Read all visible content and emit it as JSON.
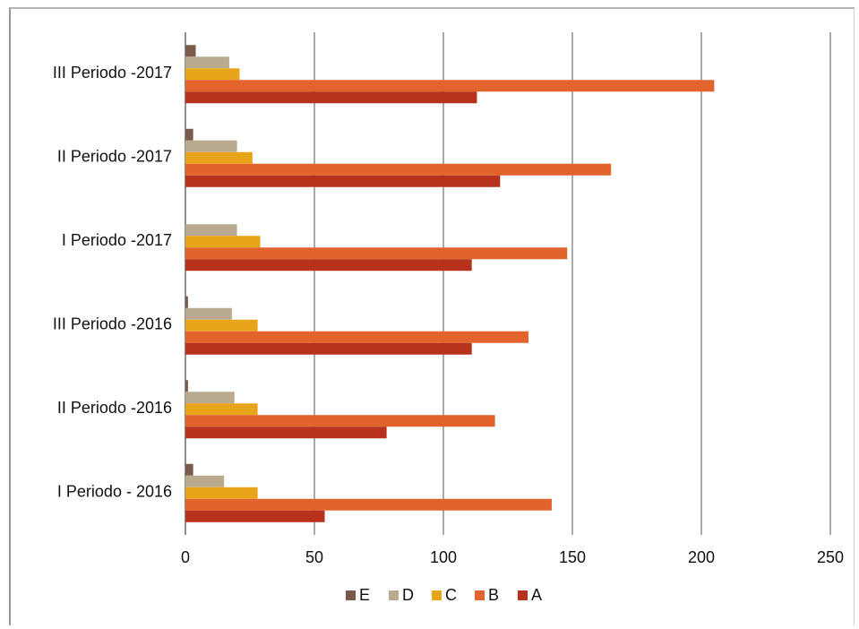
{
  "chart_data": {
    "type": "bar",
    "orientation": "horizontal",
    "categories": [
      "I Periodo - 2016",
      "II Periodo  -2016",
      "III Periodo -2016",
      "I Periodo -2017",
      "II Periodo  -2017",
      "III Periodo -2017"
    ],
    "series": [
      {
        "name": "E",
        "color": "#7a5a4c",
        "values": [
          3,
          1,
          1,
          0,
          3,
          4
        ]
      },
      {
        "name": "D",
        "color": "#b9aa8f",
        "values": [
          15,
          19,
          18,
          20,
          20,
          17
        ]
      },
      {
        "name": "C",
        "color": "#e8a51c",
        "values": [
          28,
          28,
          28,
          29,
          26,
          21
        ]
      },
      {
        "name": "B",
        "color": "#e3632d",
        "values": [
          142,
          120,
          133,
          148,
          165,
          205
        ]
      },
      {
        "name": "A",
        "color": "#b6321c",
        "values": [
          54,
          78,
          111,
          111,
          122,
          113
        ]
      }
    ],
    "xlim": [
      0,
      250
    ],
    "xticks": [
      "0",
      "50",
      "100",
      "150",
      "200",
      "250"
    ],
    "grid": "vertical",
    "legend": "bottom",
    "legend_order": [
      "E",
      "D",
      "C",
      "B",
      "A"
    ],
    "title": "",
    "xlabel": "",
    "ylabel": ""
  }
}
